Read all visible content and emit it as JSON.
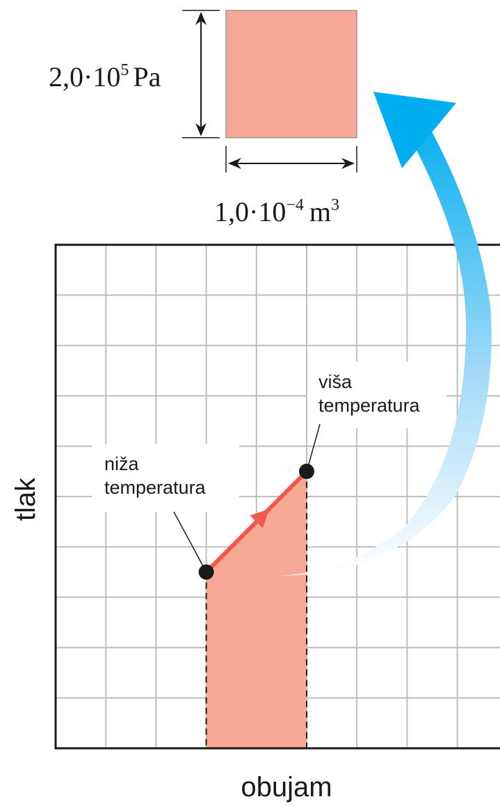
{
  "colors": {
    "fill": "#F7A996",
    "line": "#F2584C",
    "grid": "#BEBEBE",
    "arrow_start": "#00AEEF",
    "arrow_end": "#FFFFFF",
    "dark": "#1A1A1A"
  },
  "unit_square": {
    "pressure_mantissa": "2,0·10",
    "pressure_exponent": "5",
    "pressure_unit": "Pa",
    "volume_mantissa": "1,0·10",
    "volume_exponent": "−4",
    "volume_unit": "m",
    "volume_unit_exponent": "3"
  },
  "chart_data": {
    "type": "line",
    "xlabel": "obujam",
    "ylabel": "tlak",
    "grid": true,
    "xlim": [
      0,
      9
    ],
    "ylim": [
      0,
      10
    ],
    "x": [
      3,
      5
    ],
    "y": [
      3.5,
      5.5
    ],
    "shaded_area": true,
    "annotations": [
      {
        "text": [
          "niža",
          "temperatura"
        ],
        "at": [
          3,
          3.5
        ]
      },
      {
        "text": [
          "viša",
          "temperatura"
        ],
        "at": [
          5,
          5.5
        ]
      }
    ]
  },
  "icons": {
    "process_arrow": "arrow-head-icon",
    "curved_arrow": "curved-arrow-icon"
  }
}
